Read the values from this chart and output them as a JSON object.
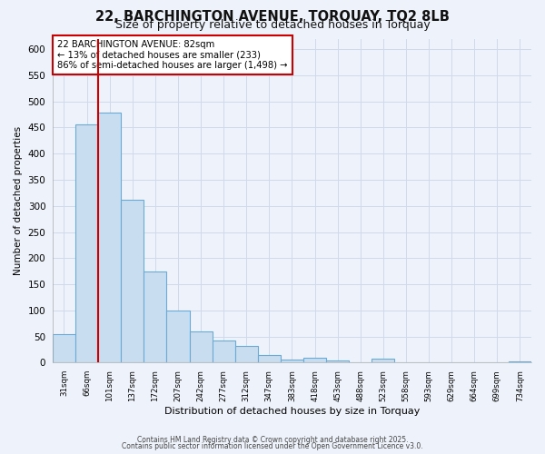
{
  "title": "22, BARCHINGTON AVENUE, TORQUAY, TQ2 8LB",
  "subtitle": "Size of property relative to detached houses in Torquay",
  "xlabel": "Distribution of detached houses by size in Torquay",
  "ylabel": "Number of detached properties",
  "bar_labels": [
    "31sqm",
    "66sqm",
    "101sqm",
    "137sqm",
    "172sqm",
    "207sqm",
    "242sqm",
    "277sqm",
    "312sqm",
    "347sqm",
    "383sqm",
    "418sqm",
    "453sqm",
    "488sqm",
    "523sqm",
    "558sqm",
    "593sqm",
    "629sqm",
    "664sqm",
    "699sqm",
    "734sqm"
  ],
  "bar_values": [
    55,
    455,
    478,
    312,
    175,
    100,
    60,
    42,
    32,
    15,
    6,
    10,
    5,
    0,
    8,
    0,
    0,
    0,
    0,
    0,
    2
  ],
  "bar_color": "#c9ddf0",
  "bar_edge_color": "#6aaad4",
  "annotation_box_text": "22 BARCHINGTON AVENUE: 82sqm\n← 13% of detached houses are smaller (233)\n86% of semi-detached houses are larger (1,498) →",
  "vline_color": "#cc0000",
  "vline_x": 1.5,
  "ylim": [
    0,
    620
  ],
  "yticks": [
    0,
    50,
    100,
    150,
    200,
    250,
    300,
    350,
    400,
    450,
    500,
    550,
    600
  ],
  "footnote1": "Contains HM Land Registry data © Crown copyright and database right 2025.",
  "footnote2": "Contains public sector information licensed under the Open Government Licence v3.0.",
  "bg_color": "#eef2fa",
  "plot_bg_color": "#eef2fa",
  "grid_color": "#d0daea",
  "title_fontsize": 10.5,
  "subtitle_fontsize": 9
}
